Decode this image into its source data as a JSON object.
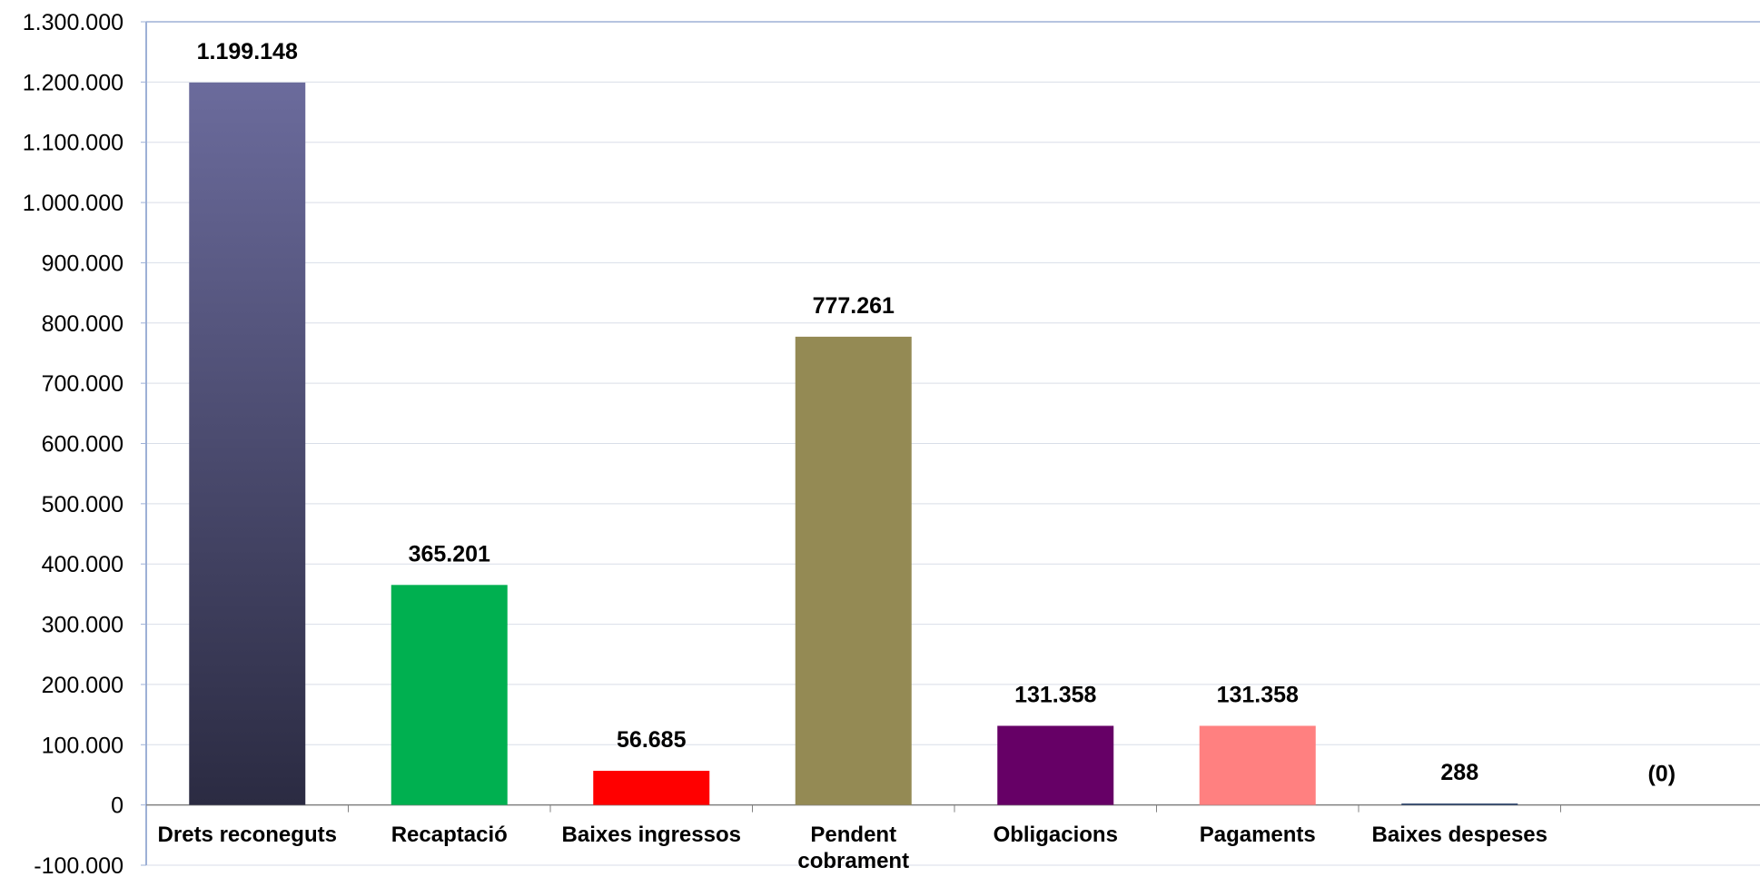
{
  "chart_data": {
    "type": "bar",
    "categories": [
      [
        "Drets reconeguts"
      ],
      [
        "Recaptació"
      ],
      [
        "Baixes ingressos"
      ],
      [
        "Pendent",
        "cobrament"
      ],
      [
        "Obligacions"
      ],
      [
        "Pagaments"
      ],
      [
        "Baixes despeses"
      ],
      [
        ""
      ]
    ],
    "values": [
      1199148,
      365201,
      56685,
      777261,
      131358,
      131358,
      288,
      0
    ],
    "value_labels": [
      "1.199.148",
      "365.201",
      "56.685",
      "777.261",
      "131.358",
      "131.358",
      "288",
      "(0)"
    ],
    "colors": [
      "gradient-navy",
      "#00B050",
      "#FF0000",
      "#948A54",
      "#660066",
      "#FF8080",
      "#1F3864",
      "#1F3864"
    ],
    "gradient": {
      "top": "#6B6B9C",
      "bottom": "#2B2B42"
    },
    "ylim": [
      -100000,
      1300000
    ],
    "ytick_step": 100000,
    "ytick_labels": [
      "-100.000",
      "0",
      "100.000",
      "200.000",
      "300.000",
      "400.000",
      "500.000",
      "600.000",
      "700.000",
      "800.000",
      "900.000",
      "1.000.000",
      "1.100.000",
      "1.200.000",
      "1.300.000"
    ],
    "grid": true,
    "legend": "none",
    "title": "",
    "xlabel": "",
    "ylabel": ""
  }
}
